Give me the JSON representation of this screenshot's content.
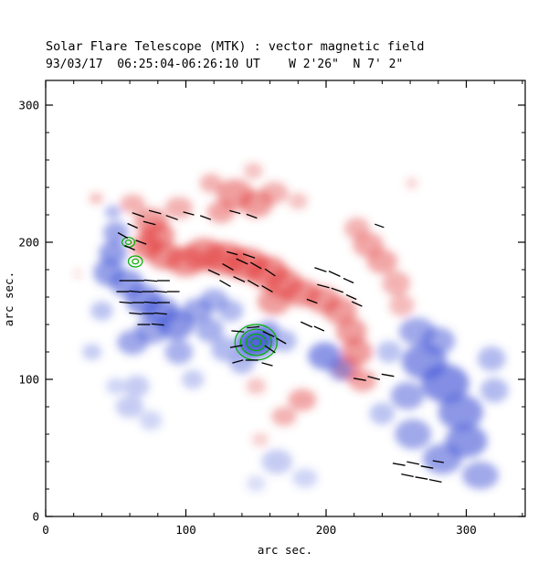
{
  "chart_data": {
    "type": "heatmap",
    "title": "Solar Flare Telescope (MTK) : vector magnetic field",
    "subtitle": "93/03/17  06:25:04-06:26:10 UT    W 2'26\"  N 7' 2\"",
    "xlabel": "arc sec.",
    "ylabel": "arc sec.",
    "xlim": [
      0,
      342
    ],
    "ylim": [
      0,
      318
    ],
    "xticks": [
      0,
      100,
      200,
      300
    ],
    "yticks": [
      0,
      100,
      200,
      300
    ],
    "minor_tick_step": 20,
    "legend": "red = positive polarity, blue = negative polarity, black segments = transverse field vectors, green = contours",
    "colors": {
      "positive": "#e23b3b",
      "negative": "#4053d6",
      "contour": "#00b000",
      "vector": "#000000",
      "frame": "#000000"
    },
    "positive_blobs": [
      [
        36,
        232,
        5,
        4,
        0.35
      ],
      [
        62,
        228,
        9,
        7,
        0.4
      ],
      [
        95,
        225,
        10,
        8,
        0.4
      ],
      [
        75,
        215,
        12,
        10,
        0.5
      ],
      [
        80,
        205,
        12,
        10,
        0.55
      ],
      [
        72,
        197,
        11,
        9,
        0.6
      ],
      [
        85,
        190,
        13,
        10,
        0.55
      ],
      [
        100,
        186,
        14,
        11,
        0.55
      ],
      [
        113,
        191,
        15,
        12,
        0.55
      ],
      [
        128,
        188,
        16,
        12,
        0.6
      ],
      [
        143,
        184,
        16,
        12,
        0.6
      ],
      [
        158,
        178,
        15,
        12,
        0.6
      ],
      [
        170,
        170,
        13,
        11,
        0.55
      ],
      [
        163,
        157,
        12,
        10,
        0.5
      ],
      [
        183,
        163,
        13,
        10,
        0.55
      ],
      [
        198,
        158,
        12,
        10,
        0.5
      ],
      [
        210,
        150,
        12,
        10,
        0.5
      ],
      [
        218,
        135,
        11,
        10,
        0.5
      ],
      [
        222,
        120,
        11,
        10,
        0.5
      ],
      [
        215,
        108,
        10,
        9,
        0.45
      ],
      [
        226,
        99,
        10,
        8,
        0.45
      ],
      [
        230,
        198,
        11,
        9,
        0.45
      ],
      [
        240,
        186,
        11,
        9,
        0.45
      ],
      [
        250,
        170,
        10,
        9,
        0.4
      ],
      [
        254,
        154,
        9,
        8,
        0.35
      ],
      [
        222,
        210,
        9,
        8,
        0.4
      ],
      [
        125,
        222,
        10,
        8,
        0.45
      ],
      [
        135,
        235,
        13,
        11,
        0.5
      ],
      [
        150,
        228,
        12,
        10,
        0.5
      ],
      [
        163,
        236,
        10,
        8,
        0.4
      ],
      [
        180,
        230,
        7,
        6,
        0.3
      ],
      [
        148,
        252,
        7,
        6,
        0.3
      ],
      [
        118,
        243,
        8,
        7,
        0.4
      ],
      [
        183,
        85,
        10,
        8,
        0.45
      ],
      [
        170,
        73,
        9,
        7,
        0.4
      ],
      [
        153,
        56,
        6,
        5,
        0.25
      ],
      [
        150,
        95,
        7,
        6,
        0.3
      ],
      [
        261,
        243,
        4,
        4,
        0.25
      ],
      [
        23,
        177,
        3,
        3,
        0.2
      ]
    ],
    "negative_blobs": [
      [
        48,
        222,
        6,
        5,
        0.4
      ],
      [
        50,
        207,
        9,
        8,
        0.5
      ],
      [
        48,
        192,
        10,
        9,
        0.55
      ],
      [
        45,
        178,
        11,
        10,
        0.55
      ],
      [
        58,
        170,
        12,
        10,
        0.55
      ],
      [
        70,
        158,
        13,
        11,
        0.6
      ],
      [
        82,
        150,
        13,
        10,
        0.6
      ],
      [
        93,
        140,
        13,
        11,
        0.6
      ],
      [
        76,
        136,
        12,
        10,
        0.5
      ],
      [
        62,
        127,
        11,
        9,
        0.5
      ],
      [
        95,
        120,
        10,
        9,
        0.45
      ],
      [
        108,
        150,
        11,
        9,
        0.5
      ],
      [
        120,
        158,
        10,
        8,
        0.45
      ],
      [
        132,
        150,
        9,
        8,
        0.4
      ],
      [
        117,
        136,
        10,
        9,
        0.45
      ],
      [
        128,
        122,
        10,
        9,
        0.4
      ],
      [
        140,
        112,
        9,
        8,
        0.4
      ],
      [
        150,
        127,
        13,
        11,
        0.9
      ],
      [
        159,
        136,
        8,
        7,
        0.5
      ],
      [
        170,
        128,
        9,
        8,
        0.4
      ],
      [
        199,
        117,
        12,
        10,
        0.6
      ],
      [
        210,
        107,
        9,
        8,
        0.45
      ],
      [
        265,
        135,
        13,
        10,
        0.5
      ],
      [
        280,
        128,
        12,
        10,
        0.5
      ],
      [
        270,
        113,
        16,
        13,
        0.6
      ],
      [
        285,
        97,
        17,
        14,
        0.65
      ],
      [
        296,
        76,
        16,
        13,
        0.6
      ],
      [
        300,
        55,
        15,
        12,
        0.6
      ],
      [
        283,
        42,
        14,
        11,
        0.55
      ],
      [
        262,
        60,
        13,
        11,
        0.5
      ],
      [
        258,
        88,
        12,
        10,
        0.5
      ],
      [
        310,
        30,
        13,
        10,
        0.5
      ],
      [
        320,
        92,
        10,
        9,
        0.4
      ],
      [
        318,
        115,
        10,
        9,
        0.4
      ],
      [
        245,
        120,
        9,
        8,
        0.35
      ],
      [
        240,
        75,
        9,
        8,
        0.35
      ],
      [
        165,
        40,
        11,
        9,
        0.3
      ],
      [
        185,
        28,
        9,
        7,
        0.25
      ],
      [
        150,
        24,
        7,
        6,
        0.2
      ],
      [
        60,
        80,
        10,
        8,
        0.3
      ],
      [
        75,
        70,
        8,
        7,
        0.25
      ],
      [
        65,
        95,
        9,
        8,
        0.3
      ],
      [
        40,
        150,
        8,
        7,
        0.35
      ],
      [
        33,
        120,
        7,
        6,
        0.3
      ],
      [
        105,
        100,
        8,
        7,
        0.3
      ],
      [
        50,
        95,
        7,
        6,
        0.25
      ]
    ],
    "contours": [
      {
        "x": 150,
        "y": 127,
        "rings": [
          [
            15,
            13
          ],
          [
            11,
            9.5
          ],
          [
            7,
            6
          ],
          [
            3.5,
            3
          ]
        ]
      },
      {
        "x": 59,
        "y": 200,
        "rings": [
          [
            4.5,
            3.5
          ],
          [
            2,
            1.6
          ]
        ]
      },
      {
        "x": 64,
        "y": 186,
        "rings": [
          [
            5,
            4
          ],
          [
            2.2,
            1.8
          ]
        ]
      }
    ],
    "vectors": [
      [
        66,
        220,
        9,
        -20
      ],
      [
        78,
        222,
        9,
        -15
      ],
      [
        90,
        218,
        9,
        -20
      ],
      [
        102,
        221,
        8,
        -15
      ],
      [
        114,
        218,
        8,
        -20
      ],
      [
        135,
        222,
        8,
        -15
      ],
      [
        147,
        219,
        8,
        -20
      ],
      [
        57,
        172,
        9,
        0
      ],
      [
        66,
        172,
        9,
        0
      ],
      [
        75,
        172,
        9,
        -5
      ],
      [
        84,
        172,
        9,
        0
      ],
      [
        55,
        164,
        9,
        0
      ],
      [
        64,
        164,
        9,
        -5
      ],
      [
        73,
        164,
        9,
        0
      ],
      [
        82,
        164,
        9,
        -5
      ],
      [
        91,
        164,
        9,
        0
      ],
      [
        57,
        156,
        9,
        -5
      ],
      [
        66,
        156,
        9,
        0
      ],
      [
        75,
        156,
        9,
        -5
      ],
      [
        84,
        156,
        9,
        0
      ],
      [
        64,
        148,
        9,
        -5
      ],
      [
        73,
        148,
        9,
        0
      ],
      [
        82,
        148,
        9,
        -5
      ],
      [
        70,
        140,
        9,
        0
      ],
      [
        80,
        140,
        9,
        -5
      ],
      [
        55,
        205,
        8,
        -30
      ],
      [
        62,
        212,
        8,
        -25
      ],
      [
        74,
        214,
        9,
        -15
      ],
      [
        60,
        196,
        8,
        -25
      ],
      [
        68,
        200,
        8,
        -20
      ],
      [
        120,
        178,
        9,
        -25
      ],
      [
        130,
        182,
        9,
        -30
      ],
      [
        140,
        186,
        9,
        -25
      ],
      [
        150,
        183,
        9,
        -30
      ],
      [
        160,
        178,
        9,
        -35
      ],
      [
        128,
        170,
        9,
        -30
      ],
      [
        138,
        173,
        9,
        -25
      ],
      [
        148,
        170,
        9,
        -30
      ],
      [
        158,
        166,
        9,
        -30
      ],
      [
        145,
        190,
        9,
        -20
      ],
      [
        133,
        192,
        8,
        -15
      ],
      [
        137,
        135,
        9,
        -5
      ],
      [
        148,
        138,
        9,
        5
      ],
      [
        159,
        133,
        9,
        -25
      ],
      [
        136,
        124,
        9,
        10
      ],
      [
        160,
        122,
        9,
        -35
      ],
      [
        147,
        114,
        9,
        0
      ],
      [
        137,
        113,
        8,
        15
      ],
      [
        158,
        111,
        8,
        -15
      ],
      [
        168,
        128,
        8,
        -30
      ],
      [
        186,
        140,
        9,
        -25
      ],
      [
        195,
        137,
        8,
        -25
      ],
      [
        196,
        180,
        9,
        -20
      ],
      [
        206,
        177,
        9,
        -25
      ],
      [
        216,
        172,
        8,
        -25
      ],
      [
        198,
        168,
        9,
        -15
      ],
      [
        208,
        165,
        9,
        -20
      ],
      [
        218,
        160,
        8,
        -25
      ],
      [
        190,
        157,
        8,
        -20
      ],
      [
        222,
        155,
        8,
        -25
      ],
      [
        224,
        100,
        9,
        -10
      ],
      [
        234,
        101,
        9,
        -15
      ],
      [
        244,
        103,
        9,
        -10
      ],
      [
        252,
        38,
        9,
        -10
      ],
      [
        262,
        39,
        9,
        -12
      ],
      [
        272,
        36,
        9,
        -10
      ],
      [
        258,
        30,
        9,
        -12
      ],
      [
        268,
        28,
        9,
        -10
      ],
      [
        278,
        26,
        9,
        -12
      ],
      [
        280,
        40,
        8,
        -10
      ],
      [
        238,
        212,
        7,
        -20
      ]
    ]
  }
}
